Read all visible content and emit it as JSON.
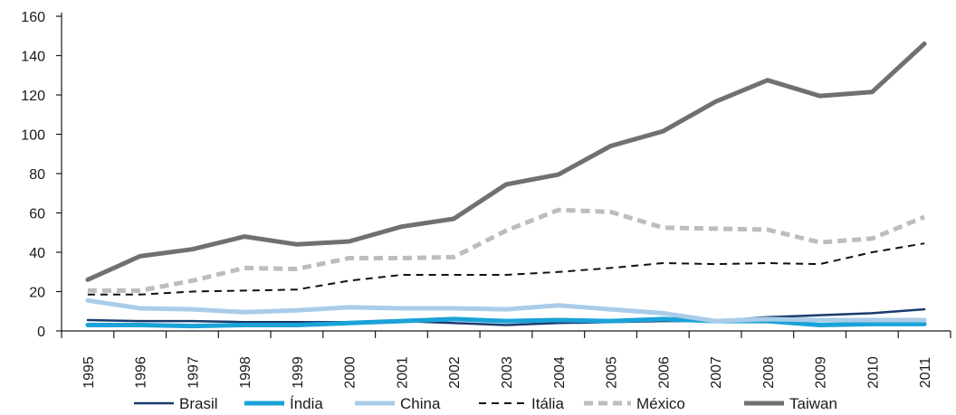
{
  "chart_data": {
    "type": "line",
    "title": "",
    "xlabel": "",
    "ylabel": "",
    "ylim": [
      0,
      160
    ],
    "yticks": [
      0,
      20,
      40,
      60,
      80,
      100,
      120,
      140,
      160
    ],
    "grid": false,
    "legend_position": "bottom",
    "categories": [
      "1995",
      "1996",
      "1997",
      "1998",
      "1999",
      "2000",
      "2001",
      "2002",
      "2003",
      "2004",
      "2005",
      "2006",
      "2007",
      "2008",
      "2009",
      "2010",
      "2011"
    ],
    "series": [
      {
        "name": "Brasil",
        "color": "#1a3a6e",
        "style": "solid",
        "width": 2.5,
        "values": [
          5.5,
          5,
          5,
          4.5,
          4.5,
          4.5,
          5,
          4,
          3,
          4,
          4.5,
          5,
          5,
          7,
          8,
          9,
          11
        ]
      },
      {
        "name": "Índia",
        "color": "#1aa3d8",
        "style": "solid",
        "width": 5,
        "values": [
          3,
          3,
          2.5,
          3,
          3,
          4,
          5,
          6,
          5,
          5.5,
          5,
          6,
          5,
          5,
          3,
          3.5,
          3.5
        ]
      },
      {
        "name": "China",
        "color": "#a9cce9",
        "style": "solid",
        "width": 5,
        "values": [
          15.5,
          11.5,
          11,
          9.5,
          10.5,
          12,
          11.5,
          11.5,
          11,
          13,
          11,
          9,
          5,
          6,
          5.5,
          5.5,
          5.5
        ]
      },
      {
        "name": "Itália",
        "color": "#111111",
        "style": "dashed",
        "width": 2,
        "values": [
          18.5,
          18.5,
          20,
          20.5,
          21,
          25.5,
          28.5,
          28.5,
          28.5,
          30,
          32,
          34.5,
          34,
          34.5,
          34,
          40,
          44.5
        ]
      },
      {
        "name": "México",
        "color": "#bdbdbd",
        "style": "dashed",
        "width": 5,
        "values": [
          20.5,
          20.5,
          25.5,
          32,
          31.5,
          37,
          37,
          37.5,
          51,
          61.5,
          60.5,
          52.5,
          52,
          51.5,
          45,
          47,
          58
        ]
      },
      {
        "name": "Taiwan",
        "color": "#707070",
        "style": "solid",
        "width": 5,
        "values": [
          26,
          38,
          41.5,
          48,
          44,
          45.5,
          53,
          57,
          74.5,
          79.5,
          94,
          101.5,
          116.5,
          127.5,
          119.5,
          121.5,
          146
        ]
      }
    ]
  }
}
